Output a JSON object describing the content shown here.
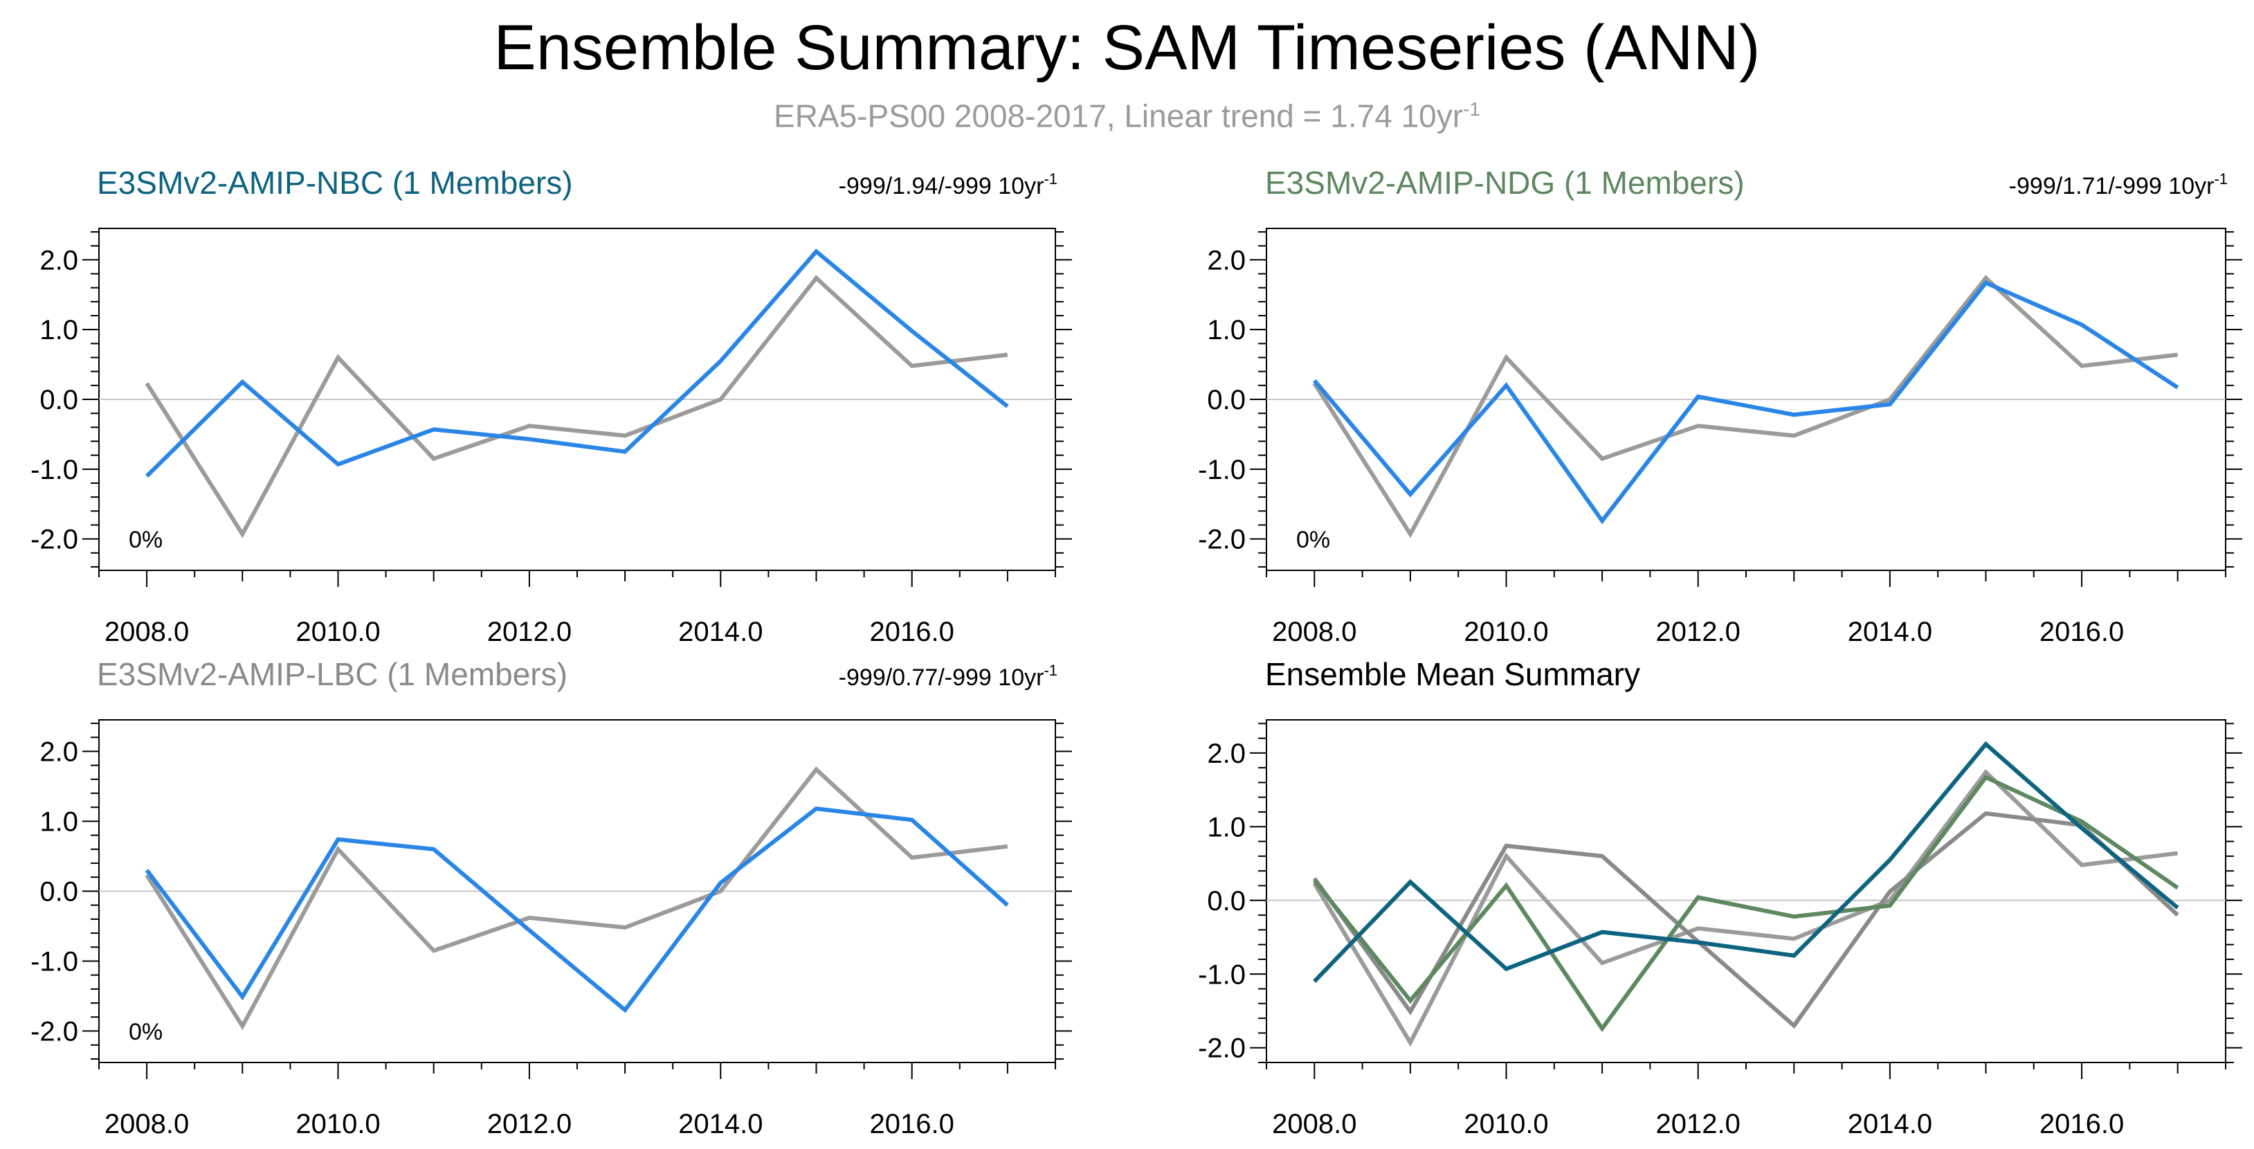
{
  "title": "Ensemble Summary: SAM Timeseries (ANN)",
  "subtitle": {
    "text": "ERA5-PS00 2008-2017, Linear trend = 1.74 10yr",
    "superscript": "-1"
  },
  "colors": {
    "obs": "#9b9b9b",
    "model": "#2a86e6",
    "nbc": "#0e6480",
    "ndg": "#5d8860",
    "lbc": "#8a8a8a",
    "mean_title": "#000000"
  },
  "chart_data": [
    {
      "type": "line",
      "title": "E3SMv2-AMIP-NBC (1 Members)",
      "title_color": "#0e6480",
      "trend_label": "-999/1.94/-999 10yr",
      "trend_superscript": "-1",
      "corner_label": "0%",
      "xlim": [
        2007.5,
        2017.5
      ],
      "ylim": [
        -2.45,
        2.45
      ],
      "x_ticks": [
        "2008.0",
        "2010.0",
        "2012.0",
        "2014.0",
        "2016.0"
      ],
      "y_ticks": [
        "2.0",
        "1.0",
        "0.0",
        "-1.0",
        "-2.0"
      ],
      "x": [
        2008,
        2009,
        2010,
        2011,
        2012,
        2013,
        2014,
        2015,
        2016,
        2017
      ],
      "series": [
        {
          "color": "#9b9b9b",
          "values": [
            0.23,
            -1.93,
            0.6,
            -0.85,
            -0.38,
            -0.52,
            0.0,
            1.74,
            0.48,
            0.64
          ]
        },
        {
          "color": "#2a86e6",
          "values": [
            -1.1,
            0.25,
            -0.93,
            -0.43,
            -0.57,
            -0.75,
            0.55,
            2.12,
            0.98,
            -0.1
          ]
        }
      ]
    },
    {
      "type": "line",
      "title": "E3SMv2-AMIP-NDG (1 Members)",
      "title_color": "#5d8860",
      "trend_label": "-999/1.71/-999 10yr",
      "trend_superscript": "-1",
      "corner_label": "0%",
      "xlim": [
        2007.5,
        2017.5
      ],
      "ylim": [
        -2.45,
        2.45
      ],
      "x_ticks": [
        "2008.0",
        "2010.0",
        "2012.0",
        "2014.0",
        "2016.0"
      ],
      "y_ticks": [
        "2.0",
        "1.0",
        "0.0",
        "-1.0",
        "-2.0"
      ],
      "x": [
        2008,
        2009,
        2010,
        2011,
        2012,
        2013,
        2014,
        2015,
        2016,
        2017
      ],
      "series": [
        {
          "color": "#9b9b9b",
          "values": [
            0.23,
            -1.93,
            0.6,
            -0.85,
            -0.38,
            -0.52,
            0.0,
            1.74,
            0.48,
            0.64
          ]
        },
        {
          "color": "#2a86e6",
          "values": [
            0.27,
            -1.36,
            0.2,
            -1.74,
            0.04,
            -0.22,
            -0.07,
            1.67,
            1.07,
            0.17
          ]
        }
      ]
    },
    {
      "type": "line",
      "title": "E3SMv2-AMIP-LBC (1 Members)",
      "title_color": "#8a8a8a",
      "trend_label": "-999/0.77/-999 10yr",
      "trend_superscript": "-1",
      "corner_label": "0%",
      "xlim": [
        2007.5,
        2017.5
      ],
      "ylim": [
        -2.45,
        2.45
      ],
      "x_ticks": [
        "2008.0",
        "2010.0",
        "2012.0",
        "2014.0",
        "2016.0"
      ],
      "y_ticks": [
        "2.0",
        "1.0",
        "0.0",
        "-1.0",
        "-2.0"
      ],
      "x": [
        2008,
        2009,
        2010,
        2011,
        2012,
        2013,
        2014,
        2015,
        2016,
        2017
      ],
      "series": [
        {
          "color": "#9b9b9b",
          "values": [
            0.23,
            -1.93,
            0.6,
            -0.85,
            -0.38,
            -0.52,
            0.0,
            1.74,
            0.48,
            0.64
          ]
        },
        {
          "color": "#2a86e6",
          "values": [
            0.3,
            -1.51,
            0.74,
            0.6,
            -0.56,
            -1.7,
            0.12,
            1.18,
            1.02,
            -0.2
          ]
        }
      ]
    },
    {
      "type": "line",
      "title": "Ensemble Mean Summary",
      "title_color": "#000000",
      "trend_label": "",
      "trend_superscript": "",
      "corner_label": "",
      "xlim": [
        2007.5,
        2017.5
      ],
      "ylim": [
        -2.2,
        2.45
      ],
      "x_ticks": [
        "2008.0",
        "2010.0",
        "2012.0",
        "2014.0",
        "2016.0"
      ],
      "y_ticks": [
        "2.0",
        "1.0",
        "0.0",
        "-1.0",
        "-2.0"
      ],
      "x": [
        2008,
        2009,
        2010,
        2011,
        2012,
        2013,
        2014,
        2015,
        2016,
        2017
      ],
      "series": [
        {
          "color": "#9b9b9b",
          "values": [
            0.23,
            -1.93,
            0.6,
            -0.85,
            -0.38,
            -0.52,
            0.0,
            1.74,
            0.48,
            0.64
          ]
        },
        {
          "color": "#8a8a8a",
          "values": [
            0.3,
            -1.51,
            0.74,
            0.6,
            -0.56,
            -1.7,
            0.12,
            1.18,
            1.02,
            -0.2
          ]
        },
        {
          "color": "#5d8860",
          "values": [
            0.27,
            -1.36,
            0.2,
            -1.74,
            0.04,
            -0.22,
            -0.07,
            1.67,
            1.07,
            0.17
          ]
        },
        {
          "color": "#0e6480",
          "values": [
            -1.1,
            0.25,
            -0.93,
            -0.43,
            -0.57,
            -0.75,
            0.55,
            2.12,
            0.98,
            -0.1
          ]
        }
      ]
    }
  ]
}
